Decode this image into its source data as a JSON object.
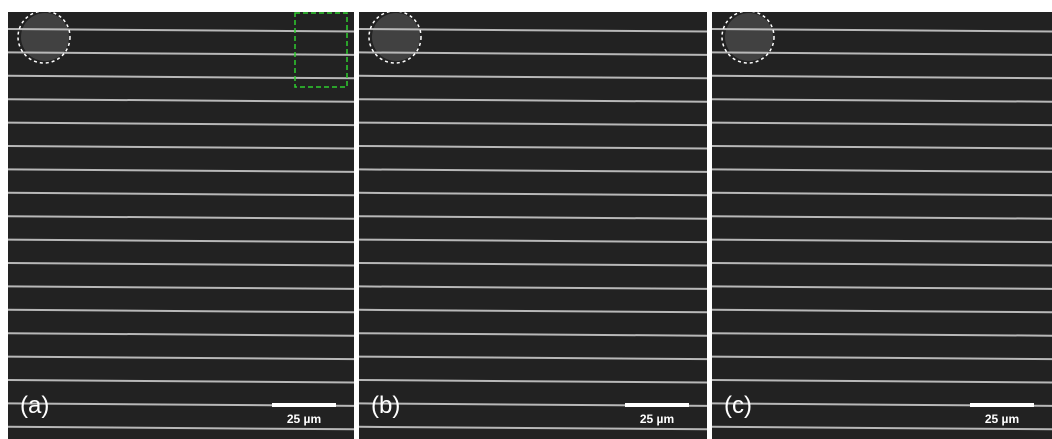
{
  "panels": [
    {
      "label": "(a)",
      "scale_bar": "25 µm"
    },
    {
      "label": "(b)",
      "scale_bar": "25 µm"
    },
    {
      "label": "(c)",
      "scale_bar": "25 µm"
    }
  ]
}
